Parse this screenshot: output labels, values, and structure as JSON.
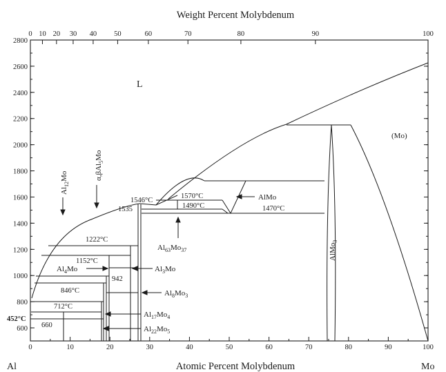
{
  "diagram": {
    "top_axis_title": "Weight Percent Molybdenum",
    "bottom_axis_title": "Atomic Percent Molybdenum",
    "left_element": "Al",
    "right_element": "Mo",
    "top_ticks": [
      "0",
      "10",
      "20",
      "30",
      "40",
      "50",
      "60",
      "70",
      "80",
      "90",
      "100"
    ],
    "bottom_ticks": [
      "0",
      "10",
      "20",
      "30",
      "40",
      "50",
      "60",
      "70",
      "80",
      "90",
      "100"
    ],
    "y_ticks": [
      "600",
      "800",
      "1000",
      "1200",
      "1400",
      "1600",
      "1800",
      "2000",
      "2200",
      "2400",
      "2600",
      "2800"
    ],
    "phases": {
      "liquid": "L",
      "mo": "(Mo)",
      "almo3": "AlMo",
      "almo3_sub": "3",
      "al12mo_base": "Al",
      "al12mo_sub": "12",
      "al12mo_tail": "Mo",
      "al5mo_pre": "α,βAl",
      "al5mo_sub": "5",
      "al5mo_tail": "Mo",
      "al4mo_base": "Al",
      "al4mo_sub": "4",
      "al4mo_tail": "Mo",
      "al3mo_base": "Al",
      "al3mo_sub": "3",
      "al3mo_tail": "Mo",
      "al8mo3_base": "Al",
      "al8mo3_sub1": "8",
      "al8mo3_mid": "Mo",
      "al8mo3_sub2": "3",
      "al17mo4_base": "Al",
      "al17mo4_sub1": "17",
      "al17mo4_mid": "Mo",
      "al17mo4_sub2": "4",
      "al22mo5_base": "Al",
      "al22mo5_sub1": "22",
      "al22mo5_mid": "Mo",
      "al22mo5_sub2": "5",
      "al63mo37_base": "Al",
      "al63mo37_sub1": "63",
      "al63mo37_mid": "Mo",
      "al63mo37_sub2": "37",
      "almo": "AlMo"
    },
    "temperatures": {
      "t1546": "1546°C",
      "t1535": "1535",
      "t1570": "1570°C",
      "t1490": "1490°C",
      "t1470": "1470°C",
      "t1222": "1222°C",
      "t1152": "1152°C",
      "t942": "942",
      "t846": "846°C",
      "t712": "712°C",
      "t452": "452°C",
      "t660": "660"
    }
  }
}
